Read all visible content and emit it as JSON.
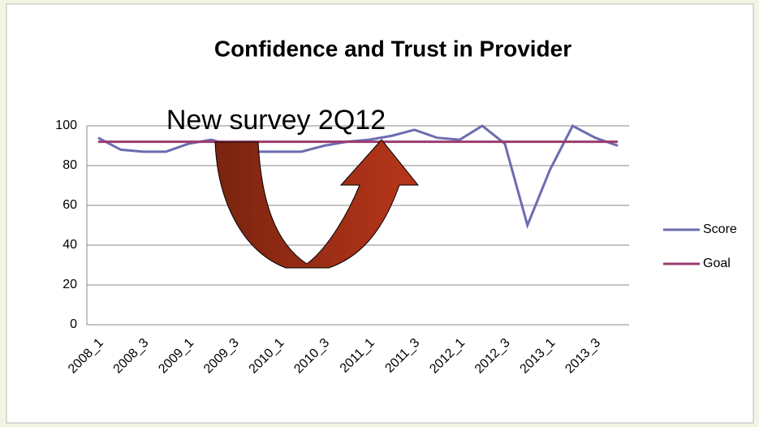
{
  "chart_data": {
    "type": "line",
    "title": "Confidence and Trust in Provider",
    "annotation": "New survey 2Q12",
    "categories": [
      "2008_1",
      null,
      "2008_3",
      null,
      "2009_1",
      null,
      "2009_3",
      null,
      "2010_1",
      null,
      "2010_3",
      null,
      "2011_1",
      null,
      "2011_3",
      null,
      "2012_1",
      null,
      "2012_3",
      null,
      "2013_1",
      null,
      "2013_3",
      null
    ],
    "series": [
      {
        "name": "Score",
        "color": "#6c6cb0",
        "values": [
          94,
          88,
          87,
          87,
          91,
          93,
          90,
          87,
          87,
          87,
          90,
          92,
          93,
          95,
          98,
          94,
          93,
          100,
          91,
          50,
          78,
          100,
          94,
          90
        ]
      },
      {
        "name": "Goal",
        "color": "#9b3b6e",
        "values": [
          92,
          92,
          92,
          92,
          92,
          92,
          92,
          92,
          92,
          92,
          92,
          92,
          92,
          92,
          92,
          92,
          92,
          92,
          92,
          92,
          92,
          92,
          92,
          92
        ]
      }
    ],
    "ylim": [
      0,
      100
    ],
    "yticks": [
      0,
      20,
      40,
      60,
      80,
      100
    ],
    "grid": true,
    "legend": "right"
  }
}
